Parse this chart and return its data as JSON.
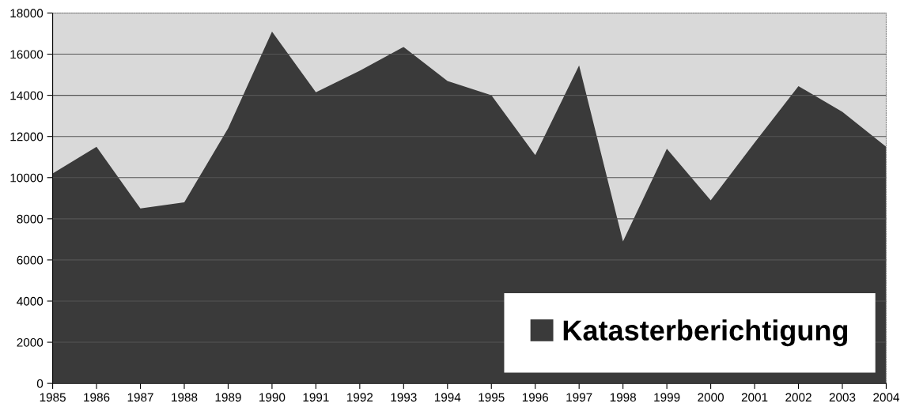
{
  "chart_data": {
    "type": "area",
    "categories": [
      "1985",
      "1986",
      "1987",
      "1988",
      "1989",
      "1990",
      "1991",
      "1992",
      "1993",
      "1994",
      "1995",
      "1996",
      "1997",
      "1998",
      "1999",
      "2000",
      "2001",
      "2002",
      "2003",
      "2004"
    ],
    "series": [
      {
        "name": "Katasterberichtigung",
        "color": "#3a3a3a",
        "values": [
          10200,
          11500,
          8500,
          8800,
          12400,
          17100,
          14150,
          15200,
          16350,
          14700,
          14000,
          11100,
          15450,
          6900,
          11400,
          8900,
          11700,
          14450,
          13200,
          11500
        ]
      }
    ],
    "ylim": [
      0,
      18000
    ],
    "yticks": [
      0,
      2000,
      4000,
      6000,
      8000,
      10000,
      12000,
      14000,
      16000,
      18000
    ],
    "grid": "y",
    "legend": "bottom right"
  }
}
